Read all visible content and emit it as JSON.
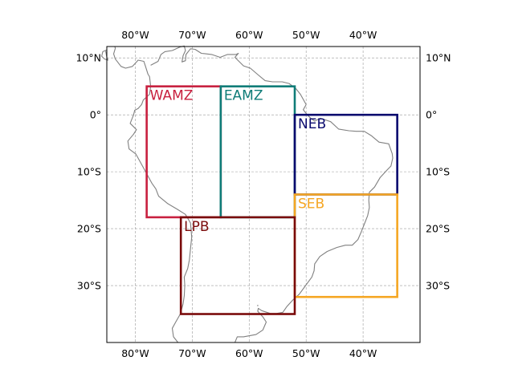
{
  "map": {
    "projection": "PlateCarree",
    "extent": {
      "lon_min": -85,
      "lon_max": -30,
      "lat_min": -40,
      "lat_max": 12
    },
    "gridlines": {
      "style": "dashed",
      "color": "#9a9a9a",
      "lon_values": [
        -80,
        -70,
        -60,
        -50,
        -40
      ],
      "lat_values": [
        10,
        0,
        -10,
        -20,
        -30
      ]
    },
    "tick_labels": {
      "lon": [
        "80°W",
        "70°W",
        "60°W",
        "50°W",
        "40°W"
      ],
      "lat": [
        "10°N",
        "0°",
        "10°S",
        "20°S",
        "30°S"
      ]
    },
    "coastline_color": "#808080"
  },
  "regions": [
    {
      "name": "WAMZ",
      "color": "#c8203f",
      "lon": [
        -78,
        -65
      ],
      "lat": [
        -18,
        5
      ]
    },
    {
      "name": "EAMZ",
      "color": "#0f7c78",
      "lon": [
        -65,
        -52
      ],
      "lat": [
        -18,
        5
      ]
    },
    {
      "name": "NEB",
      "color": "#0a0a6e",
      "lon": [
        -52,
        -34
      ],
      "lat": [
        -14,
        0
      ]
    },
    {
      "name": "SEB",
      "color": "#f5a623",
      "lon": [
        -52,
        -34
      ],
      "lat": [
        -32,
        -14
      ]
    },
    {
      "name": "LPB",
      "color": "#7a0a0a",
      "lon": [
        -72,
        -52
      ],
      "lat": [
        -35,
        -18
      ]
    }
  ]
}
